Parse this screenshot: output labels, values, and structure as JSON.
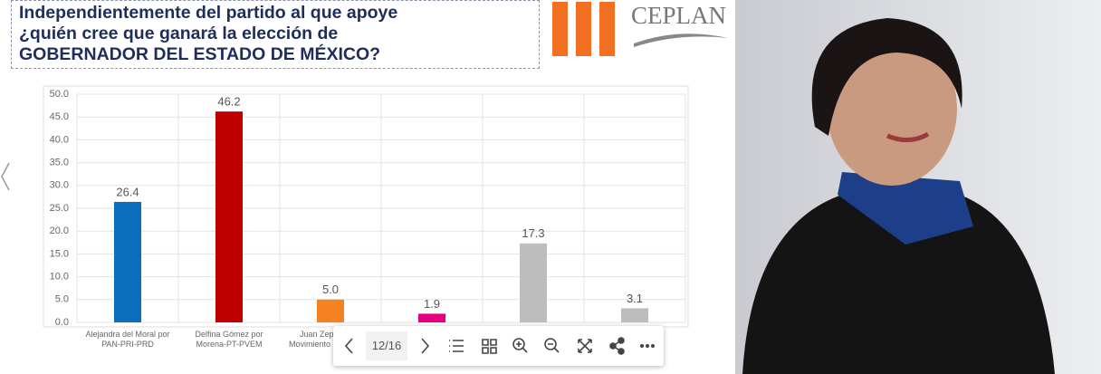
{
  "title_lines": [
    "Independientemente del partido al que apoye",
    "¿quién cree que ganará la elección de",
    "GOBERNADOR DEL ESTADO DE MÉXICO?"
  ],
  "logo": "CEPLAN",
  "toolbar": {
    "page": "12/16"
  },
  "chart_data": {
    "type": "bar",
    "categories": [
      "Alejandra del Moral por PAN-PRI-PRD",
      "Delfina Gómez por Morena-PT-PVEM",
      "Juan Zepeda por Movimiento Ciudadano",
      null,
      null,
      null
    ],
    "values": [
      26.4,
      46.2,
      5.0,
      1.9,
      17.3,
      3.1
    ],
    "value_labels": [
      "26.4",
      "46.2",
      "5.0",
      "1.9",
      "17.3",
      "3.1"
    ],
    "colors": [
      "#0a6ebd",
      "#c00000",
      "#f58220",
      "#e6007e",
      "#bdbdbd",
      "#bdbdbd"
    ],
    "ylim": [
      0,
      50
    ],
    "yticks": [
      {
        "value": 0,
        "label": "0.0"
      },
      {
        "value": 5,
        "label": "5.0"
      },
      {
        "value": 10,
        "label": "10.0"
      },
      {
        "value": 15,
        "label": "15.0"
      },
      {
        "value": 20,
        "label": "20.0"
      },
      {
        "value": 25,
        "label": "25.0"
      },
      {
        "value": 30,
        "label": "30.0"
      },
      {
        "value": 35,
        "label": "35.0"
      },
      {
        "value": 40,
        "label": "40.0"
      },
      {
        "value": 45,
        "label": "45.0"
      },
      {
        "value": 50,
        "label": "50.0"
      }
    ],
    "grid": true
  }
}
